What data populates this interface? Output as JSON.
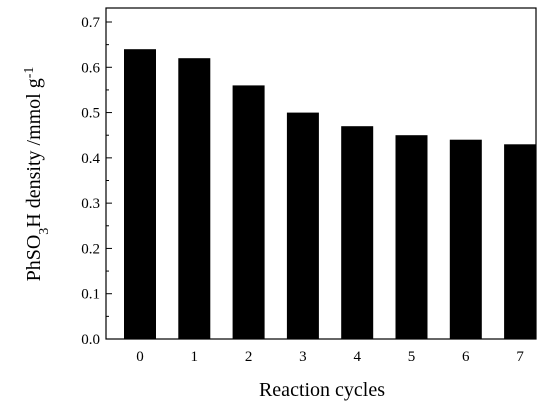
{
  "chart_data": {
    "type": "bar",
    "categories": [
      "0",
      "1",
      "2",
      "3",
      "4",
      "5",
      "6",
      "7"
    ],
    "values": [
      0.64,
      0.62,
      0.56,
      0.5,
      0.47,
      0.45,
      0.44,
      0.43
    ],
    "xlabel": "Reaction cycles",
    "ylabel": {
      "prefix": "PhSO",
      "sub": "3",
      "middle": "H density /mmol g",
      "sup": "-1"
    },
    "ylim": [
      0.0,
      0.7
    ],
    "yticks": [
      "0.0",
      "0.1",
      "0.2",
      "0.3",
      "0.4",
      "0.5",
      "0.6",
      "0.7"
    ],
    "bar_color": "#000000",
    "grid": false,
    "legend": "none"
  }
}
